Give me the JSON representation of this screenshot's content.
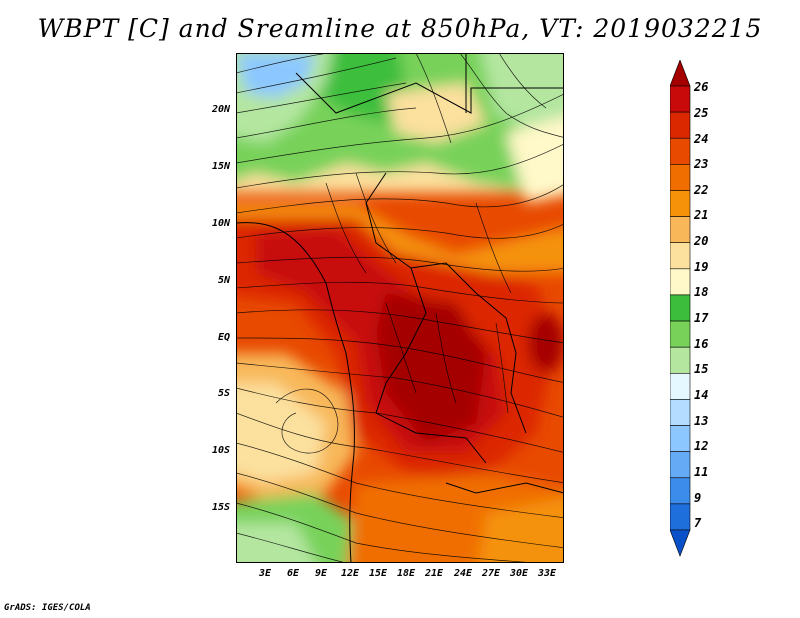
{
  "title": "WBPT [C] and Sreamline at 850hPa, VT: 2019032215",
  "y_axis": [
    "20N",
    "15N",
    "10N",
    "5N",
    "EQ",
    "5S",
    "10S",
    "15S"
  ],
  "x_axis": [
    "3E",
    "6E",
    "9E",
    "12E",
    "15E",
    "18E",
    "21E",
    "24E",
    "27E",
    "30E",
    "33E"
  ],
  "colorbar": {
    "labels": [
      "26",
      "25",
      "24",
      "23",
      "22",
      "21",
      "20",
      "19",
      "18",
      "17",
      "16",
      "15",
      "14",
      "13",
      "12",
      "11",
      "9",
      "7"
    ],
    "colors": [
      "#a50000",
      "#c80a0a",
      "#dc2800",
      "#e84a00",
      "#f06e00",
      "#f5920a",
      "#f8b85a",
      "#fbe09e",
      "#fff8c8",
      "#3cbe3c",
      "#78d25a",
      "#b4e6a0",
      "#e6f8ff",
      "#b4dcff",
      "#8cc8ff",
      "#64aaf5",
      "#3c8ceb",
      "#1e6edc",
      "#0a50c8"
    ]
  },
  "credit": "GrADS: IGES/COLA"
}
